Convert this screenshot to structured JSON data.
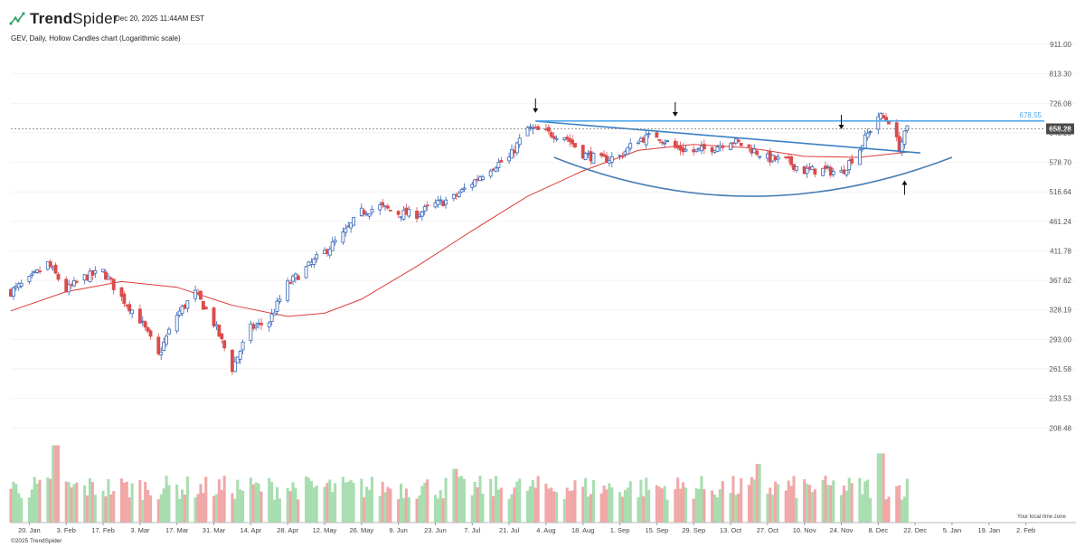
{
  "header": {
    "brand_prefix": "Trend",
    "brand_suffix": "Spider",
    "date": "Dec 20, 2025 11:44AM EST",
    "subtitle": "GEV, Daily, Hollow Candles chart (Logarithmic scale)"
  },
  "footer": {
    "copyright": "©2025 TrendSpider",
    "timezone_note": "Your local time zone"
  },
  "chart_data": {
    "type": "candlestick",
    "title": "GEV, Daily, Hollow Candles chart (Logarithmic scale)",
    "y_scale": "log",
    "ylim": [
      190,
      940
    ],
    "y_ticks": [
      "911.00",
      "813.30",
      "726.08",
      "648.20",
      "578.70",
      "516.64",
      "461.24",
      "411.78",
      "367.62",
      "328.19",
      "293.00",
      "261.58",
      "233.53",
      "208.48"
    ],
    "x_ticks": [
      "20. Jan",
      "3. Feb",
      "17. Feb",
      "3. Mar",
      "17. Mar",
      "31. Mar",
      "14. Apr",
      "28. Apr",
      "12. May",
      "26. May",
      "9. Jun",
      "23. Jun",
      "7. Jul",
      "21. Jul",
      "4. Aug",
      "18. Aug",
      "1. Sep",
      "15. Sep",
      "29. Sep",
      "13. Oct",
      "27. Oct",
      "10. Nov",
      "24. Nov",
      "8. Dec",
      "22. Dec",
      "5. Jan",
      "19. Jan",
      "2. Feb"
    ],
    "x_range": [
      "2025-01-13",
      "2026-02-09"
    ],
    "last_price": {
      "label": "658.28",
      "value": 658.28,
      "color": "#4a4a4a"
    },
    "resistance_level": {
      "label": "678.55",
      "value": 678.55,
      "color": "#55a8ec"
    },
    "anchors": [
      {
        "date": "2025-01-13",
        "close": 352
      },
      {
        "date": "2025-01-20",
        "close": 368
      },
      {
        "date": "2025-01-27",
        "close": 392
      },
      {
        "date": "2025-02-03",
        "close": 354
      },
      {
        "date": "2025-02-10",
        "close": 372
      },
      {
        "date": "2025-02-17",
        "close": 380
      },
      {
        "date": "2025-02-24",
        "close": 344
      },
      {
        "date": "2025-03-03",
        "close": 316
      },
      {
        "date": "2025-03-10",
        "close": 275
      },
      {
        "date": "2025-03-17",
        "close": 322
      },
      {
        "date": "2025-03-24",
        "close": 350
      },
      {
        "date": "2025-03-31",
        "close": 312
      },
      {
        "date": "2025-04-07",
        "close": 262
      },
      {
        "date": "2025-04-14",
        "close": 306
      },
      {
        "date": "2025-04-21",
        "close": 314
      },
      {
        "date": "2025-04-28",
        "close": 362
      },
      {
        "date": "2025-05-05",
        "close": 385
      },
      {
        "date": "2025-05-12",
        "close": 410
      },
      {
        "date": "2025-05-19",
        "close": 438
      },
      {
        "date": "2025-05-26",
        "close": 478
      },
      {
        "date": "2025-06-02",
        "close": 488
      },
      {
        "date": "2025-06-09",
        "close": 476
      },
      {
        "date": "2025-06-16",
        "close": 474
      },
      {
        "date": "2025-06-23",
        "close": 492
      },
      {
        "date": "2025-06-30",
        "close": 505
      },
      {
        "date": "2025-07-07",
        "close": 535
      },
      {
        "date": "2025-07-14",
        "close": 568
      },
      {
        "date": "2025-07-21",
        "close": 588
      },
      {
        "date": "2025-07-28",
        "close": 660
      },
      {
        "date": "2025-08-04",
        "close": 648
      },
      {
        "date": "2025-08-11",
        "close": 640
      },
      {
        "date": "2025-08-18",
        "close": 598
      },
      {
        "date": "2025-08-25",
        "close": 584
      },
      {
        "date": "2025-09-01",
        "close": 592
      },
      {
        "date": "2025-09-08",
        "close": 632
      },
      {
        "date": "2025-09-15",
        "close": 642
      },
      {
        "date": "2025-09-22",
        "close": 612
      },
      {
        "date": "2025-09-29",
        "close": 603
      },
      {
        "date": "2025-10-06",
        "close": 612
      },
      {
        "date": "2025-10-13",
        "close": 630
      },
      {
        "date": "2025-10-20",
        "close": 612
      },
      {
        "date": "2025-10-27",
        "close": 588
      },
      {
        "date": "2025-11-03",
        "close": 582
      },
      {
        "date": "2025-11-10",
        "close": 560
      },
      {
        "date": "2025-11-17",
        "close": 562
      },
      {
        "date": "2025-11-24",
        "close": 556
      },
      {
        "date": "2025-12-01",
        "close": 610
      },
      {
        "date": "2025-12-08",
        "close": 692
      },
      {
        "date": "2025-12-12",
        "close": 680
      },
      {
        "date": "2025-12-16",
        "close": 612
      },
      {
        "date": "2025-12-19",
        "close": 658
      }
    ],
    "moving_average": {
      "color": "#dc3c3c",
      "points": [
        {
          "date": "2025-01-13",
          "value": 327
        },
        {
          "date": "2025-02-03",
          "value": 352
        },
        {
          "date": "2025-02-24",
          "value": 366
        },
        {
          "date": "2025-03-17",
          "value": 358
        },
        {
          "date": "2025-04-07",
          "value": 334
        },
        {
          "date": "2025-04-28",
          "value": 320
        },
        {
          "date": "2025-05-12",
          "value": 324
        },
        {
          "date": "2025-05-26",
          "value": 342
        },
        {
          "date": "2025-06-16",
          "value": 388
        },
        {
          "date": "2025-07-07",
          "value": 445
        },
        {
          "date": "2025-07-28",
          "value": 508
        },
        {
          "date": "2025-08-18",
          "value": 560
        },
        {
          "date": "2025-09-08",
          "value": 606
        },
        {
          "date": "2025-09-29",
          "value": 620
        },
        {
          "date": "2025-10-20",
          "value": 612
        },
        {
          "date": "2025-11-10",
          "value": 592
        },
        {
          "date": "2025-12-01",
          "value": 590
        },
        {
          "date": "2025-12-19",
          "value": 602
        }
      ]
    },
    "annotations": {
      "trendline_color": "#3b82c4",
      "descending_trendline": [
        {
          "date": "2025-07-31",
          "value": 678
        },
        {
          "date": "2025-12-24",
          "value": 600
        }
      ],
      "horizontal_resistance": [
        {
          "date": "2025-07-31",
          "value": 678.55
        }
      ],
      "rounding_bottom": [
        {
          "date": "2025-08-07",
          "value": 590
        },
        {
          "date": "2025-10-21",
          "value": 508
        },
        {
          "date": "2026-01-05",
          "value": 590
        }
      ],
      "markers": [
        {
          "date": "2025-07-31",
          "value": 700,
          "direction": "down"
        },
        {
          "date": "2025-09-22",
          "value": 690,
          "direction": "down"
        },
        {
          "date": "2025-11-24",
          "value": 657,
          "direction": "down"
        },
        {
          "date": "2025-12-18",
          "value": 540,
          "direction": "up"
        }
      ]
    },
    "volume": {
      "legend": "",
      "up_color": "#a8ddb0",
      "down_color": "#f1a7a7",
      "peaks": [
        {
          "date": "2025-01-30",
          "height": 0.95
        },
        {
          "date": "2025-10-24",
          "height": 0.72
        },
        {
          "date": "2025-12-09",
          "height": 0.85
        },
        {
          "date": "2025-06-30",
          "height": 0.66
        }
      ]
    },
    "colors": {
      "up": "#3565b6",
      "down": "#dc4b4b",
      "grid": "#f2f2f2",
      "axis": "#bbbbbb"
    },
    "grid": true
  }
}
